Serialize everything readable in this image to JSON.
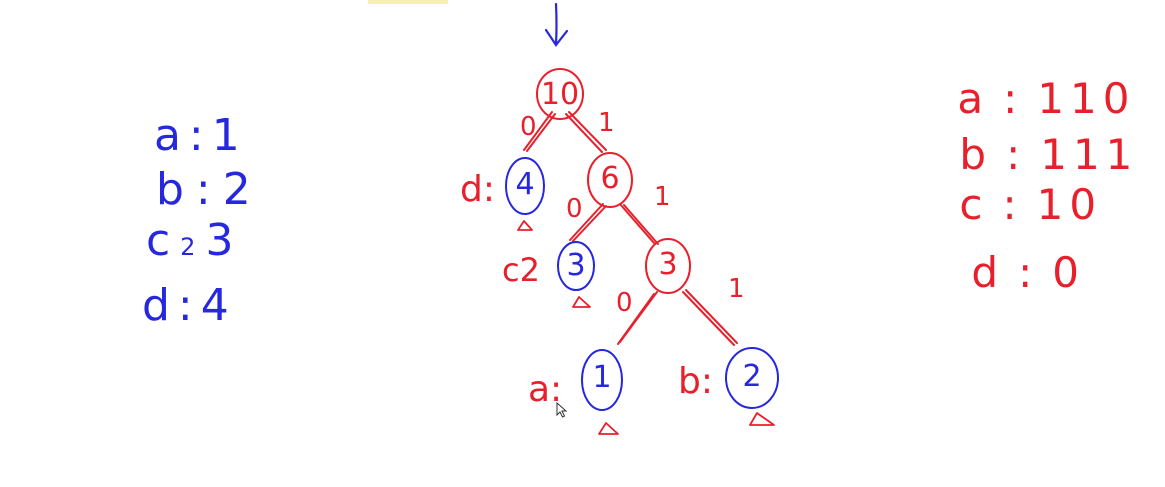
{
  "frequencies": [
    {
      "char": "a",
      "sep": ":",
      "value": "1"
    },
    {
      "char": "b",
      "sep": ":",
      "value": "2"
    },
    {
      "char": "c",
      "sep": "2",
      "value": "3"
    },
    {
      "char": "d",
      "sep": ":",
      "value": "4"
    }
  ],
  "codes": [
    {
      "char": "a",
      "sep": ":",
      "code": "110"
    },
    {
      "char": "b",
      "sep": ":",
      "code": "111"
    },
    {
      "char": "c",
      "sep": ":",
      "code": "10"
    },
    {
      "char": "d",
      "sep": ":",
      "code": "0"
    }
  ],
  "tree": {
    "root": "10",
    "internal": [
      "6",
      "3"
    ],
    "leaves": [
      {
        "label": "d:",
        "weight": "4"
      },
      {
        "label": "c2",
        "weight": "3"
      },
      {
        "label": "a:",
        "weight": "1"
      },
      {
        "label": "b:",
        "weight": "2"
      }
    ],
    "edge_labels": [
      "0",
      "1",
      "0",
      "1",
      "0",
      "1"
    ]
  },
  "colors": {
    "blue": "#2727e0",
    "red": "#e8202c"
  }
}
